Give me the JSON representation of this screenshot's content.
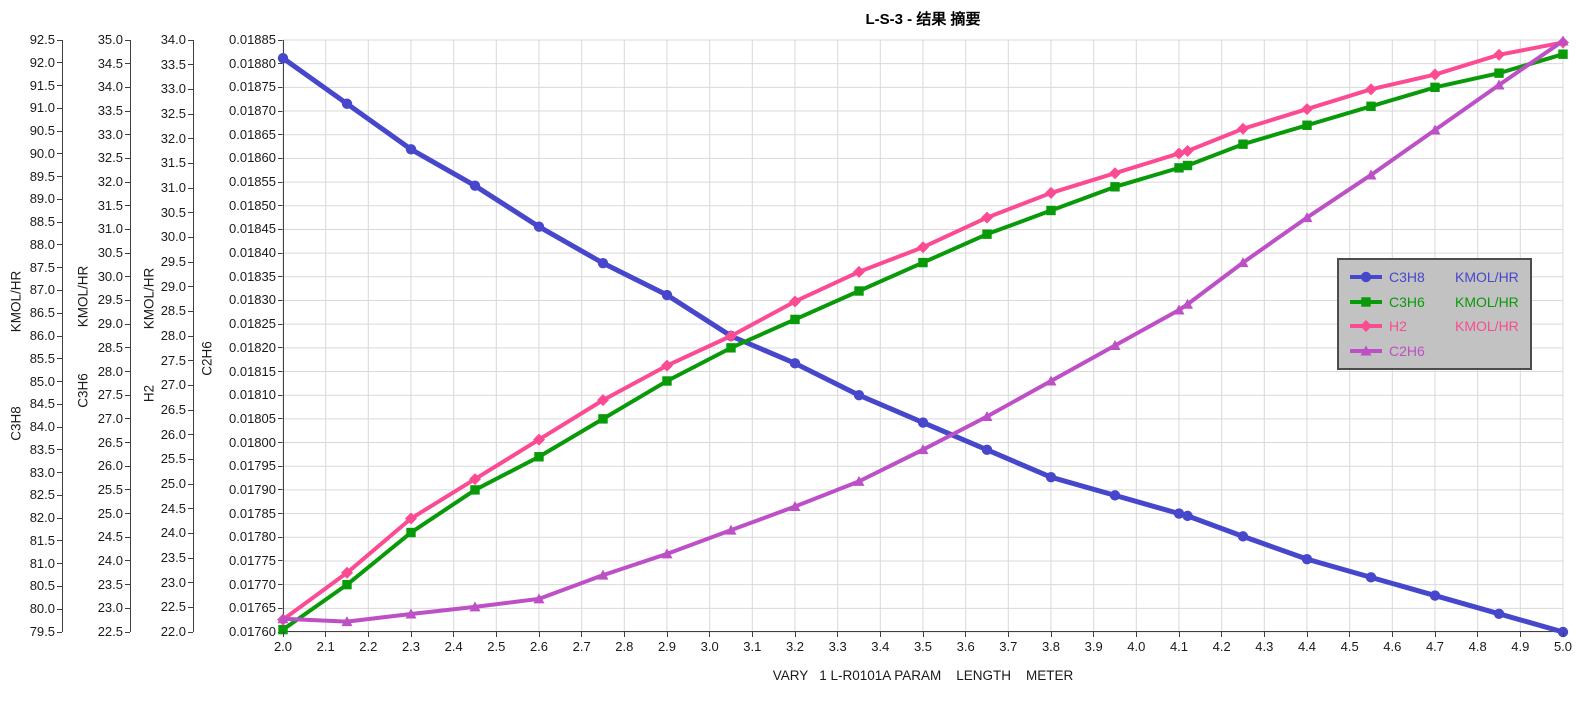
{
  "title": "L-S-3 - 结果 摘要",
  "x_axis": {
    "title": "VARY   1 L-R0101A PARAM    LENGTH    METER",
    "min": 2.0,
    "max": 5.0,
    "ticks": [
      "2.0",
      "2.1",
      "2.2",
      "2.3",
      "2.4",
      "2.5",
      "2.6",
      "2.7",
      "2.8",
      "2.9",
      "3.0",
      "3.1",
      "3.2",
      "3.3",
      "3.4",
      "3.5",
      "3.6",
      "3.7",
      "3.8",
      "3.9",
      "4.0",
      "4.1",
      "4.2",
      "4.3",
      "4.4",
      "4.5",
      "4.6",
      "4.7",
      "4.8",
      "4.9",
      "5.0"
    ]
  },
  "colors": {
    "legend_bg": "#c2c2c2",
    "legend_border": "#4c4c4c",
    "grid": "#d9d9d9",
    "axis": "#3f3f3f",
    "c3h8": "#4747cc",
    "c3h6": "#089a08",
    "h2": "#fb4b92",
    "c2h6": "#bd50c6"
  },
  "chart_data": {
    "type": "line",
    "title": "L-S-3 - 结果 摘要",
    "xlabel": "VARY 1 L-R0101A PARAM LENGTH METER",
    "grid": true,
    "legend_position": "right",
    "x_range": [
      2.0,
      5.0
    ],
    "x": [
      2.0,
      2.15,
      2.3,
      2.45,
      2.6,
      2.75,
      2.9,
      3.05,
      3.2,
      3.35,
      3.5,
      3.65,
      3.8,
      3.95,
      4.1,
      4.12,
      4.25,
      4.4,
      4.55,
      4.7,
      4.85,
      5.0
    ],
    "y_axes": [
      {
        "id": "c3h8",
        "name": "C3H8",
        "unit": "KMOL/HR",
        "min": 79.5,
        "max": 92.5,
        "ticks": [
          "92.5",
          "92.0",
          "91.5",
          "91.0",
          "90.5",
          "90.0",
          "89.5",
          "89.0",
          "88.5",
          "88.0",
          "87.5",
          "87.0",
          "86.5",
          "86.0",
          "85.5",
          "85.0",
          "84.5",
          "84.0",
          "83.5",
          "83.0",
          "82.5",
          "82.0",
          "81.5",
          "81.0",
          "80.5",
          "80.0",
          "79.5"
        ]
      },
      {
        "id": "c3h6",
        "name": "C3H6",
        "unit": "KMOL/HR",
        "min": 22.5,
        "max": 35.0,
        "ticks": [
          "35.0",
          "34.5",
          "34.0",
          "33.5",
          "33.0",
          "32.5",
          "32.0",
          "31.5",
          "31.0",
          "30.5",
          "30.0",
          "29.5",
          "29.0",
          "28.5",
          "28.0",
          "27.5",
          "27.0",
          "26.5",
          "26.0",
          "25.5",
          "25.0",
          "24.5",
          "24.0",
          "23.5",
          "23.0",
          "22.5"
        ]
      },
      {
        "id": "h2",
        "name": "H2",
        "unit": "KMOL/HR",
        "min": 22.0,
        "max": 34.0,
        "ticks": [
          "34.0",
          "33.5",
          "33.0",
          "32.5",
          "32.0",
          "31.5",
          "31.0",
          "30.5",
          "30.0",
          "29.5",
          "29.0",
          "28.5",
          "28.0",
          "27.5",
          "27.0",
          "26.5",
          "26.0",
          "25.5",
          "25.0",
          "24.5",
          "24.0",
          "23.5",
          "23.0",
          "22.5",
          "22.0"
        ]
      },
      {
        "id": "c2h6",
        "name": "C2H6",
        "unit": "",
        "min": 0.0176,
        "max": 0.01885,
        "ticks": [
          "0.01885",
          "0.01880",
          "0.01875",
          "0.01870",
          "0.01865",
          "0.01860",
          "0.01855",
          "0.01850",
          "0.01845",
          "0.01840",
          "0.01835",
          "0.01830",
          "0.01825",
          "0.01820",
          "0.01815",
          "0.01810",
          "0.01805",
          "0.01800",
          "0.01795",
          "0.01790",
          "0.01785",
          "0.01780",
          "0.01775",
          "0.01770",
          "0.01765",
          "0.01760"
        ]
      }
    ],
    "series": [
      {
        "name": "C3H8",
        "unit": "KMOL/HR",
        "axis": "c3h8",
        "marker": "circle",
        "color": "#4747cc",
        "values": [
          92.1,
          91.1,
          90.1,
          89.3,
          88.4,
          87.6,
          86.9,
          86.0,
          85.4,
          84.7,
          84.1,
          83.5,
          82.9,
          82.5,
          82.1,
          82.05,
          81.6,
          81.1,
          80.7,
          80.3,
          79.9,
          79.5
        ]
      },
      {
        "name": "C3H6",
        "unit": "KMOL/HR",
        "axis": "c3h6",
        "marker": "square",
        "color": "#089a08",
        "values": [
          22.55,
          23.5,
          24.6,
          25.5,
          26.2,
          27.0,
          27.8,
          28.5,
          29.1,
          29.7,
          30.3,
          30.9,
          31.4,
          31.9,
          32.3,
          32.35,
          32.8,
          33.2,
          33.6,
          34.0,
          34.3,
          34.7
        ]
      },
      {
        "name": "H2",
        "unit": "KMOL/HR",
        "axis": "h2",
        "marker": "diamond",
        "color": "#fb4b92",
        "values": [
          22.25,
          23.2,
          24.3,
          25.1,
          25.9,
          26.7,
          27.4,
          28.0,
          28.7,
          29.3,
          29.8,
          30.4,
          30.9,
          31.3,
          31.7,
          31.75,
          32.2,
          32.6,
          33.0,
          33.3,
          33.7,
          33.95
        ]
      },
      {
        "name": "C2H6",
        "unit": "",
        "axis": "c2h6",
        "marker": "triangle",
        "color": "#bd50c6",
        "values": [
          0.017628,
          0.017622,
          0.017638,
          0.017653,
          0.01767,
          0.01772,
          0.017765,
          0.017815,
          0.017865,
          0.017918,
          0.017985,
          0.018055,
          0.01813,
          0.018205,
          0.01828,
          0.018292,
          0.01838,
          0.018475,
          0.018565,
          0.01866,
          0.018755,
          0.018848
        ]
      }
    ]
  }
}
